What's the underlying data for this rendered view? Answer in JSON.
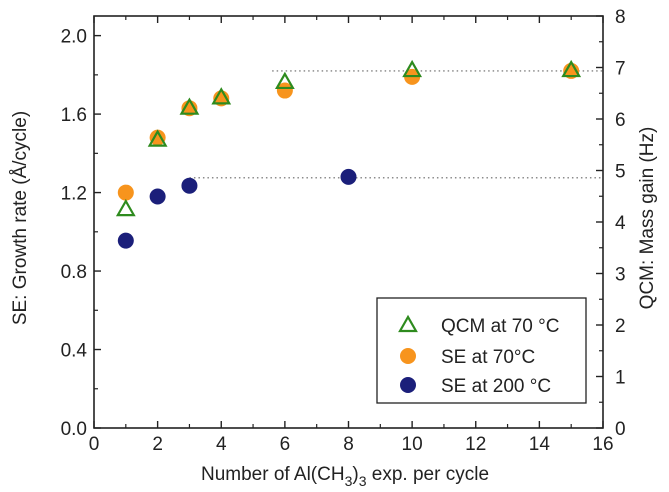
{
  "chart_data": {
    "type": "scatter",
    "x_axis": {
      "label_prefix": "Number of Al(CH",
      "label_sub1": "3",
      "label_mid": ")",
      "label_sub2": "3",
      "label_suffix": " exp. per cycle",
      "range": [
        0,
        16
      ],
      "ticks": [
        "0",
        "2",
        "4",
        "6",
        "8",
        "10",
        "12",
        "14",
        "16"
      ]
    },
    "y_axis_left": {
      "label": "SE: Growth rate (Å/cycle)",
      "range": [
        0.0,
        2.1
      ],
      "ticks": [
        "0.0",
        "0.4",
        "0.8",
        "1.2",
        "1.6",
        "2.0"
      ]
    },
    "y_axis_right": {
      "label": "QCM: Mass gain (Hz)",
      "range": [
        0,
        8
      ],
      "ticks": [
        "0",
        "1",
        "2",
        "3",
        "4",
        "5",
        "6",
        "7",
        "8"
      ]
    },
    "series": [
      {
        "name": "QCM at 70 °C",
        "marker": "open-triangle",
        "color": "#2e8b1e",
        "axis": "right",
        "x": [
          1,
          2,
          3,
          4,
          6,
          10,
          15
        ],
        "y": [
          4.25,
          5.6,
          6.22,
          6.42,
          6.72,
          6.95,
          6.95
        ]
      },
      {
        "name": "SE at 70°C",
        "marker": "filled-circle",
        "color": "#f7941d",
        "axis": "left",
        "x": [
          1,
          2,
          3,
          4,
          6,
          10,
          15
        ],
        "y": [
          1.2,
          1.48,
          1.63,
          1.68,
          1.72,
          1.79,
          1.82
        ]
      },
      {
        "name": "SE at 200 °C",
        "marker": "filled-circle",
        "color": "#1b1f7a",
        "axis": "left",
        "x": [
          1,
          2,
          3,
          8
        ],
        "y": [
          0.955,
          1.18,
          1.235,
          1.28
        ]
      }
    ],
    "reference_lines": [
      {
        "axis": "left",
        "y": 1.275,
        "x_range": [
          3,
          16
        ],
        "style": "dotted"
      },
      {
        "axis": "left",
        "y": 1.82,
        "x_range": [
          5.6,
          16
        ],
        "style": "dotted"
      }
    ],
    "legend": {
      "placement": "bottom-right"
    },
    "grid": false
  }
}
